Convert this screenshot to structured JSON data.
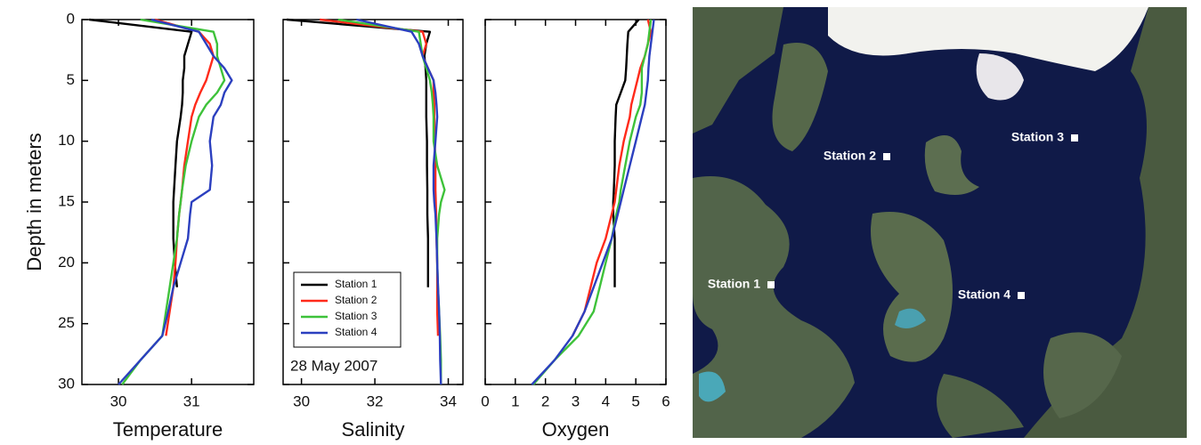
{
  "chart_data": [
    {
      "type": "line",
      "xlabel": "Temperature",
      "ylabel": "Depth in meters",
      "show_ytick_labels": true,
      "xlim": [
        29.5,
        31.85
      ],
      "xticks": [
        30,
        31
      ],
      "ylim": [
        0,
        30
      ],
      "yticks": [
        0,
        5,
        10,
        15,
        20,
        25,
        30
      ],
      "y_inverted": true,
      "y": [
        0,
        1,
        2,
        3,
        4,
        5,
        6,
        7,
        8,
        10,
        12,
        14,
        15,
        16,
        18,
        20,
        22,
        24,
        26,
        28,
        30
      ],
      "series": [
        {
          "name": "Station 1",
          "color": "#000000",
          "values": [
            29.6,
            31.0,
            30.95,
            30.9,
            30.9,
            30.88,
            30.88,
            30.87,
            30.85,
            30.8,
            30.78,
            30.76,
            30.75,
            30.75,
            30.75,
            30.77,
            30.8,
            null,
            null,
            null,
            null
          ]
        },
        {
          "name": "Station 2",
          "color": "#ff2a1a",
          "values": [
            30.5,
            31.1,
            31.25,
            31.3,
            31.25,
            31.2,
            31.12,
            31.05,
            31.0,
            30.95,
            30.9,
            30.87,
            30.85,
            30.83,
            30.8,
            30.78,
            30.75,
            30.7,
            30.65,
            null,
            null
          ]
        },
        {
          "name": "Station 3",
          "color": "#3ec23a",
          "values": [
            30.3,
            31.3,
            31.35,
            31.35,
            31.4,
            31.45,
            31.35,
            31.2,
            31.1,
            31.0,
            30.92,
            30.87,
            30.85,
            30.83,
            30.8,
            30.75,
            30.7,
            30.65,
            30.6,
            30.3,
            30.05
          ]
        },
        {
          "name": "Station 4",
          "color": "#2b3fbf",
          "values": [
            30.45,
            31.1,
            31.2,
            31.3,
            31.45,
            31.55,
            31.45,
            31.4,
            31.3,
            31.25,
            31.28,
            31.25,
            31.0,
            30.98,
            30.95,
            30.85,
            30.75,
            30.68,
            30.6,
            30.3,
            30.0
          ]
        }
      ]
    },
    {
      "type": "line",
      "xlabel": "Salinity",
      "show_ytick_labels": false,
      "xlim": [
        29.5,
        34.4
      ],
      "xticks": [
        30,
        32,
        34
      ],
      "ylim": [
        0,
        30
      ],
      "yticks": [
        0,
        5,
        10,
        15,
        20,
        25,
        30
      ],
      "y_inverted": true,
      "legend": "lower left",
      "annotation": "28 May 2007",
      "y": [
        0,
        1,
        2,
        3,
        4,
        5,
        6,
        7,
        8,
        10,
        12,
        14,
        15,
        16,
        18,
        20,
        22,
        24,
        26,
        28,
        30
      ],
      "series": [
        {
          "name": "Station 1",
          "color": "#000000",
          "values": [
            29.6,
            33.5,
            33.4,
            33.35,
            33.38,
            33.4,
            33.4,
            33.4,
            33.4,
            33.42,
            33.42,
            33.43,
            33.43,
            33.43,
            33.45,
            33.45,
            33.45,
            null,
            null,
            null,
            null
          ]
        },
        {
          "name": "Station 2",
          "color": "#ff2a1a",
          "values": [
            30.5,
            33.3,
            33.4,
            33.3,
            33.45,
            33.6,
            33.6,
            33.62,
            33.62,
            33.63,
            33.65,
            33.65,
            33.66,
            33.67,
            33.68,
            33.7,
            33.7,
            33.7,
            33.72,
            null,
            null
          ]
        },
        {
          "name": "Station 3",
          "color": "#3ec23a",
          "values": [
            31.0,
            33.2,
            33.25,
            33.3,
            33.4,
            33.5,
            33.55,
            33.58,
            33.6,
            33.6,
            33.7,
            33.9,
            33.8,
            33.75,
            33.7,
            33.7,
            33.72,
            33.75,
            33.78,
            33.8,
            33.8
          ]
        },
        {
          "name": "Station 4",
          "color": "#2b3fbf",
          "values": [
            31.5,
            33.0,
            33.2,
            33.3,
            33.45,
            33.6,
            33.65,
            33.68,
            33.7,
            33.65,
            33.6,
            33.6,
            33.62,
            33.65,
            33.68,
            33.7,
            33.72,
            33.75,
            33.77,
            33.78,
            33.8
          ]
        }
      ]
    },
    {
      "type": "line",
      "xlabel": "Oxygen",
      "show_ytick_labels": false,
      "xlim": [
        0,
        6
      ],
      "xticks": [
        0,
        1,
        2,
        3,
        4,
        5,
        6
      ],
      "ylim": [
        0,
        30
      ],
      "yticks": [
        0,
        5,
        10,
        15,
        20,
        25,
        30
      ],
      "y_inverted": true,
      "y": [
        0,
        1,
        2,
        3,
        4,
        5,
        6,
        7,
        8,
        10,
        12,
        14,
        15,
        16,
        18,
        20,
        22,
        24,
        26,
        28,
        30
      ],
      "series": [
        {
          "name": "Station 1",
          "color": "#000000",
          "values": [
            5.1,
            4.75,
            4.72,
            4.7,
            4.68,
            4.65,
            4.5,
            4.35,
            4.33,
            4.3,
            4.3,
            4.27,
            4.25,
            4.25,
            4.3,
            4.3,
            4.3,
            null,
            null,
            null,
            null
          ]
        },
        {
          "name": "Station 2",
          "color": "#ff2a1a",
          "values": [
            5.4,
            5.5,
            5.4,
            5.3,
            5.15,
            5.05,
            4.95,
            4.85,
            4.8,
            4.6,
            4.45,
            4.35,
            4.3,
            4.2,
            4.0,
            3.7,
            3.5,
            3.3,
            2.9,
            null,
            null
          ]
        },
        {
          "name": "Station 3",
          "color": "#3ec23a",
          "values": [
            5.5,
            5.45,
            5.4,
            5.3,
            5.2,
            5.2,
            5.2,
            5.15,
            5.0,
            4.8,
            4.65,
            4.5,
            4.45,
            4.35,
            4.2,
            4.0,
            3.8,
            3.6,
            3.1,
            2.3,
            1.6
          ]
        },
        {
          "name": "Station 4",
          "color": "#2b3fbf",
          "values": [
            5.6,
            5.55,
            5.5,
            5.45,
            5.42,
            5.4,
            5.35,
            5.3,
            5.2,
            5.0,
            4.8,
            4.6,
            4.5,
            4.4,
            4.2,
            3.9,
            3.6,
            3.3,
            2.9,
            2.3,
            1.55
          ]
        }
      ]
    }
  ],
  "map": {
    "stations": [
      {
        "label": "Station 1"
      },
      {
        "label": "Station 2"
      },
      {
        "label": "Station 3"
      },
      {
        "label": "Station 4"
      }
    ]
  }
}
